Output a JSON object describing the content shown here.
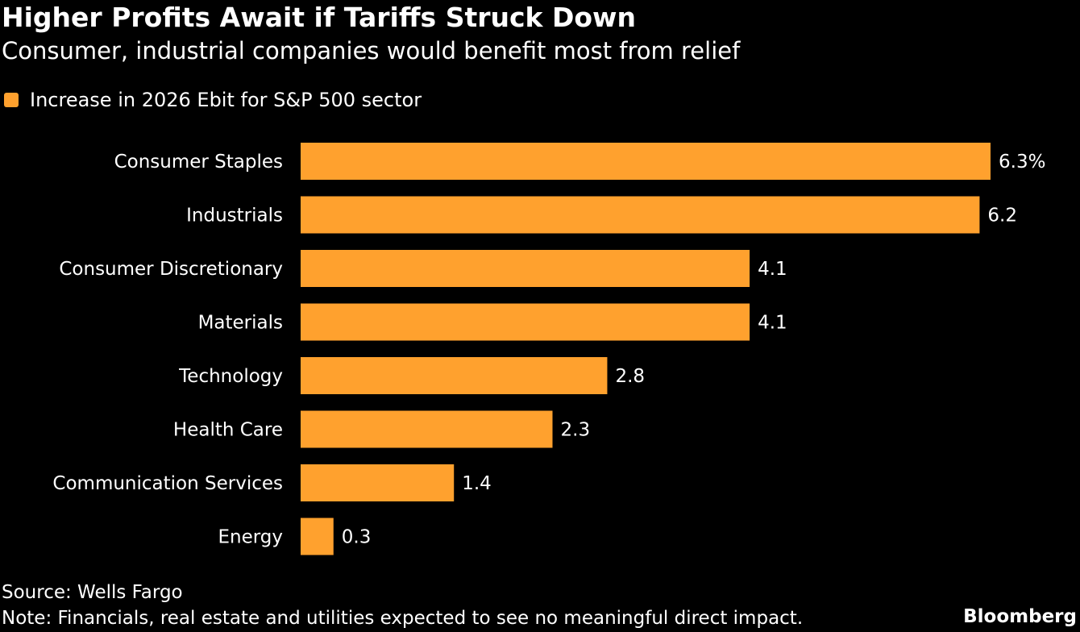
{
  "title": "Higher Profits Await if Tariffs Struck Down",
  "subtitle": "Consumer, industrial companies would benefit most from relief",
  "source": "Source: Wells Fargo",
  "note": "Note: Financials, real estate and utilities expected to see no meaningful direct impact.",
  "logo": "Bloomberg",
  "chart_data": {
    "type": "bar",
    "orientation": "horizontal",
    "categories": [
      "Consumer Staples",
      "Industrials",
      "Consumer Discretionary",
      "Materials",
      "Technology",
      "Health Care",
      "Communication Services",
      "Energy"
    ],
    "series": [
      {
        "name": "Increase in 2026 Ebit for S&P 500 sector",
        "values": [
          6.3,
          6.2,
          4.1,
          4.1,
          2.8,
          2.3,
          1.4,
          0.3
        ],
        "color": "#FFA12E"
      }
    ],
    "data_labels": [
      "6.3%",
      "6.2",
      "4.1",
      "4.1",
      "2.8",
      "2.3",
      "1.4",
      "0.3"
    ],
    "xlim": [
      0,
      6.3
    ],
    "grid": false,
    "legend": "top-left",
    "title": "Higher Profits Await if Tariffs Struck Down",
    "xlabel": "",
    "ylabel": ""
  }
}
